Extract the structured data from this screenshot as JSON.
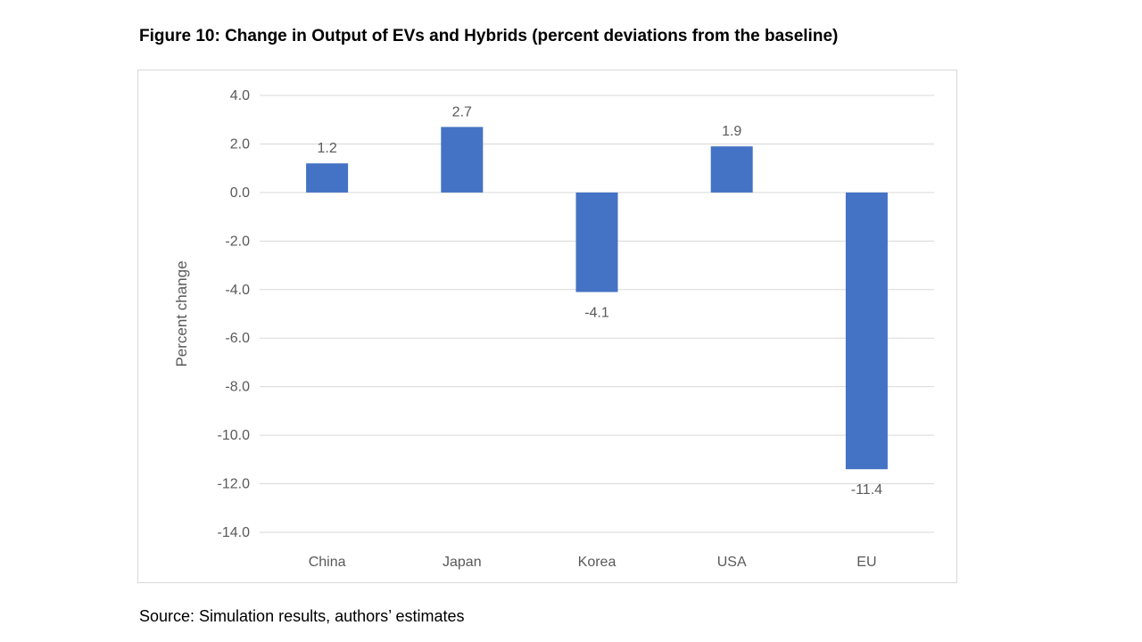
{
  "figure": {
    "title": "Figure 10: Change in Output of EVs and Hybrids (percent deviations from the baseline)",
    "source": "Source: Simulation results, authors’ estimates"
  },
  "colors": {
    "bar": "#4472c4",
    "grid": "#d9d9d9",
    "text": "#595959"
  },
  "chart_data": {
    "type": "bar",
    "title": "",
    "xlabel": "",
    "ylabel": "Percent change",
    "categories": [
      "China",
      "Japan",
      "Korea",
      "USA",
      "EU"
    ],
    "values": [
      1.2,
      2.7,
      -4.1,
      1.9,
      -11.4
    ],
    "value_labels": [
      "1.2",
      "2.7",
      "-4.1",
      "1.9",
      "-11.4"
    ],
    "ylim": [
      -14.0,
      4.0
    ],
    "yticks": [
      4.0,
      2.0,
      0.0,
      -2.0,
      -4.0,
      -6.0,
      -8.0,
      -10.0,
      -12.0,
      -14.0
    ],
    "ytick_labels": [
      "4.0",
      "2.0",
      "0.0",
      "-2.0",
      "-4.0",
      "-6.0",
      "-8.0",
      "-10.0",
      "-12.0",
      "-14.0"
    ],
    "grid": true,
    "legend": "none"
  }
}
